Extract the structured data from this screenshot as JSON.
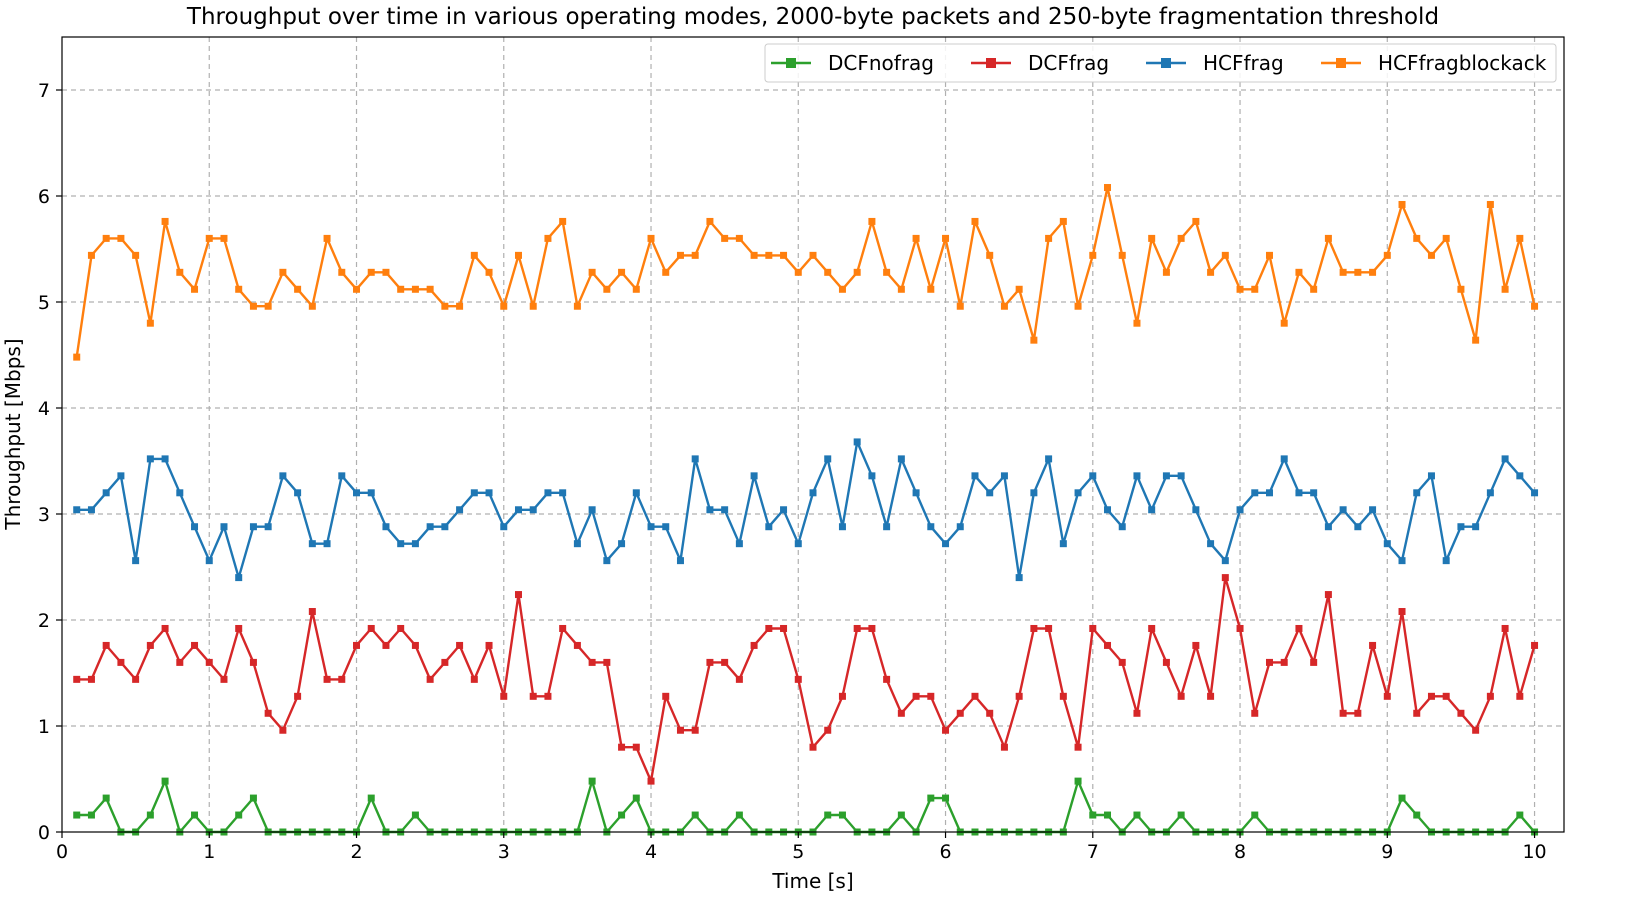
{
  "chart_data": {
    "type": "line",
    "title": "Throughput over time in various operating modes, 2000-byte packets and 250-byte fragmentation threshold",
    "xlabel": "Time [s]",
    "ylabel": "Throughput [Mbps]",
    "xlim": [
      0,
      10.2
    ],
    "ylim": [
      0,
      7.5
    ],
    "xticks": [
      "0",
      "1",
      "2",
      "3",
      "4",
      "5",
      "6",
      "7",
      "8",
      "9",
      "10"
    ],
    "yticks": [
      "0",
      "1",
      "2",
      "3",
      "4",
      "5",
      "6",
      "7"
    ],
    "grid": true,
    "legend_position": "top-right",
    "marker": "square",
    "x": [
      0.1,
      0.2,
      0.3,
      0.4,
      0.5,
      0.6,
      0.7,
      0.8,
      0.9,
      1.0,
      1.1,
      1.2,
      1.3,
      1.4,
      1.5,
      1.6,
      1.7,
      1.8,
      1.9,
      2.0,
      2.1,
      2.2,
      2.3,
      2.4,
      2.5,
      2.6,
      2.7,
      2.8,
      2.9,
      3.0,
      3.1,
      3.2,
      3.3,
      3.4,
      3.5,
      3.6,
      3.7,
      3.8,
      3.9,
      4.0,
      4.1,
      4.2,
      4.3,
      4.4,
      4.5,
      4.6,
      4.7,
      4.8,
      4.9,
      5.0,
      5.1,
      5.2,
      5.3,
      5.4,
      5.5,
      5.6,
      5.7,
      5.8,
      5.9,
      6.0,
      6.1,
      6.2,
      6.3,
      6.4,
      6.5,
      6.6,
      6.7,
      6.8,
      6.9,
      7.0,
      7.1,
      7.2,
      7.3,
      7.4,
      7.5,
      7.6,
      7.7,
      7.8,
      7.9,
      8.0,
      8.1,
      8.2,
      8.3,
      8.4,
      8.5,
      8.6,
      8.7,
      8.8,
      8.9,
      9.0,
      9.1,
      9.2,
      9.3,
      9.4,
      9.5,
      9.6,
      9.7,
      9.8,
      9.9,
      10.0
    ],
    "series": [
      {
        "name": "DCFnofrag",
        "color": "#2ca02c",
        "values": [
          0.16,
          0.16,
          0.32,
          0,
          0,
          0.16,
          0.48,
          0,
          0.16,
          0,
          0,
          0.16,
          0.32,
          0,
          0,
          0,
          0,
          0,
          0,
          0,
          0.32,
          0,
          0,
          0.16,
          0,
          0,
          0,
          0,
          0,
          0,
          0,
          0,
          0,
          0,
          0,
          0.48,
          0,
          0.16,
          0.32,
          0,
          0,
          0,
          0.16,
          0,
          0,
          0.16,
          0,
          0,
          0,
          0,
          0,
          0.16,
          0.16,
          0,
          0,
          0,
          0.16,
          0,
          0.32,
          0.32,
          0,
          0,
          0,
          0,
          0,
          0,
          0,
          0,
          0.48,
          0.16,
          0.16,
          0,
          0.16,
          0,
          0,
          0.16,
          0,
          0,
          0,
          0,
          0.16,
          0,
          0,
          0,
          0,
          0,
          0,
          0,
          0,
          0,
          0.32,
          0.16,
          0,
          0,
          0,
          0,
          0,
          0,
          0.16,
          0
        ]
      },
      {
        "name": "DCFfrag",
        "color": "#d62728",
        "values": [
          1.44,
          1.44,
          1.76,
          1.6,
          1.44,
          1.76,
          1.92,
          1.6,
          1.76,
          1.6,
          1.44,
          1.92,
          1.6,
          1.12,
          0.96,
          1.28,
          2.08,
          1.44,
          1.44,
          1.76,
          1.92,
          1.76,
          1.92,
          1.76,
          1.44,
          1.6,
          1.76,
          1.44,
          1.76,
          1.28,
          2.24,
          1.28,
          1.28,
          1.92,
          1.76,
          1.6,
          1.6,
          0.8,
          0.8,
          0.48,
          1.28,
          0.96,
          0.96,
          1.6,
          1.6,
          1.44,
          1.76,
          1.92,
          1.92,
          1.44,
          0.8,
          0.96,
          1.28,
          1.92,
          1.92,
          1.44,
          1.12,
          1.28,
          1.28,
          0.96,
          1.12,
          1.28,
          1.12,
          0.8,
          1.28,
          1.92,
          1.92,
          1.28,
          0.8,
          1.92,
          1.76,
          1.6,
          1.12,
          1.92,
          1.6,
          1.28,
          1.76,
          1.28,
          2.4,
          1.92,
          1.12,
          1.6,
          1.6,
          1.92,
          1.6,
          2.24,
          1.12,
          1.12,
          1.76,
          1.28,
          2.08,
          1.12,
          1.28,
          1.28,
          1.12,
          0.96,
          1.28,
          1.92,
          1.28,
          1.76
        ]
      },
      {
        "name": "HCFfrag",
        "color": "#1f77b4",
        "values": [
          3.04,
          3.04,
          3.2,
          3.36,
          2.56,
          3.52,
          3.52,
          3.2,
          2.88,
          2.56,
          2.88,
          2.4,
          2.88,
          2.88,
          3.36,
          3.2,
          2.72,
          2.72,
          3.36,
          3.2,
          3.2,
          2.88,
          2.72,
          2.72,
          2.88,
          2.88,
          3.04,
          3.2,
          3.2,
          2.88,
          3.04,
          3.04,
          3.2,
          3.2,
          2.72,
          3.04,
          2.56,
          2.72,
          3.2,
          2.88,
          2.88,
          2.56,
          3.52,
          3.04,
          3.04,
          2.72,
          3.36,
          2.88,
          3.04,
          2.72,
          3.2,
          3.52,
          2.88,
          3.68,
          3.36,
          2.88,
          3.52,
          3.2,
          2.88,
          2.72,
          2.88,
          3.36,
          3.2,
          3.36,
          2.4,
          3.2,
          3.52,
          2.72,
          3.2,
          3.36,
          3.04,
          2.88,
          3.36,
          3.04,
          3.36,
          3.36,
          3.04,
          2.72,
          2.56,
          3.04,
          3.2,
          3.2,
          3.52,
          3.2,
          3.2,
          2.88,
          3.04,
          2.88,
          3.04,
          2.72,
          2.56,
          3.2,
          3.36,
          2.56,
          2.88,
          2.88,
          3.2,
          3.52,
          3.36,
          3.2
        ]
      },
      {
        "name": "HCFfragblockack",
        "color": "#ff7f0e",
        "values": [
          4.48,
          5.44,
          5.6,
          5.6,
          5.44,
          4.8,
          5.76,
          5.28,
          5.12,
          5.6,
          5.6,
          5.12,
          4.96,
          4.96,
          5.28,
          5.12,
          4.96,
          5.6,
          5.28,
          5.12,
          5.28,
          5.28,
          5.12,
          5.12,
          5.12,
          4.96,
          4.96,
          5.44,
          5.28,
          4.96,
          5.44,
          4.96,
          5.6,
          5.76,
          4.96,
          5.28,
          5.12,
          5.28,
          5.12,
          5.6,
          5.28,
          5.44,
          5.44,
          5.76,
          5.6,
          5.6,
          5.44,
          5.44,
          5.44,
          5.28,
          5.44,
          5.28,
          5.12,
          5.28,
          5.76,
          5.28,
          5.12,
          5.6,
          5.12,
          5.6,
          4.96,
          5.76,
          5.44,
          4.96,
          5.12,
          4.64,
          5.6,
          5.76,
          4.96,
          5.44,
          6.08,
          5.44,
          4.8,
          5.6,
          5.28,
          5.6,
          5.76,
          5.28,
          5.44,
          5.12,
          5.12,
          5.44,
          4.8,
          5.28,
          5.12,
          5.6,
          5.28,
          5.28,
          5.28,
          5.44,
          5.92,
          5.6,
          5.44,
          5.6,
          5.12,
          4.64,
          5.92,
          5.12,
          5.6,
          4.96
        ]
      }
    ]
  }
}
